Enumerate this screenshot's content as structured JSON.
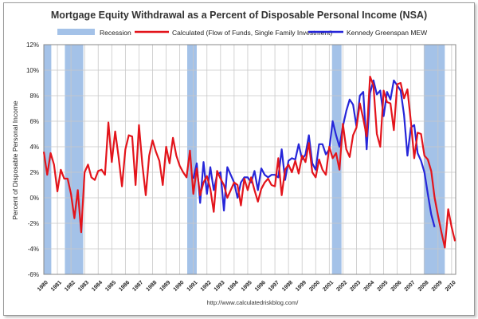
{
  "chart_data": {
    "type": "line",
    "title": "Mortgage Equity Withdrawal as a Percent of Disposable Personal Income (NSA)",
    "ylabel": "Percent of Disposable Personal Income",
    "xlabel": "",
    "source": "http://www.calculatedriskblog.com/",
    "ylim": [
      -6,
      12
    ],
    "yticks": [
      -6,
      -4,
      -2,
      0,
      2,
      4,
      6,
      8,
      10,
      12
    ],
    "ytick_labels": [
      "-6%",
      "-4%",
      "-2%",
      "0%",
      "2%",
      "4%",
      "6%",
      "8%",
      "10%",
      "12%"
    ],
    "xlim": [
      1980,
      2010.3
    ],
    "xticks": [
      1980,
      1981,
      1982,
      1983,
      1984,
      1985,
      1986,
      1987,
      1988,
      1989,
      1990,
      1991,
      1992,
      1993,
      1994,
      1995,
      1996,
      1997,
      1998,
      1999,
      2000,
      2001,
      2002,
      2003,
      2004,
      2005,
      2006,
      2007,
      2008,
      2009,
      2010
    ],
    "grid": true,
    "legend_position": "top",
    "recession_label": "Recession",
    "recessions": [
      [
        1980.0,
        1980.55
      ],
      [
        1981.55,
        1982.9
      ],
      [
        1990.55,
        1991.25
      ],
      [
        2001.2,
        2001.9
      ],
      [
        2007.95,
        2009.5
      ]
    ],
    "colors": {
      "recession": "#a4c2e8",
      "calculated": "#e3141b",
      "kennedy": "#2626d9",
      "grid": "#c8c8c8"
    },
    "series": [
      {
        "name": "Calculated (Flow of Funds, Single Family Investment)",
        "x_start": 1980.0,
        "step": 0.25,
        "values": [
          3.6,
          1.8,
          3.5,
          2.6,
          0.5,
          2.2,
          1.5,
          1.5,
          0.3,
          -1.6,
          0.6,
          -2.7,
          2.0,
          2.6,
          1.6,
          1.4,
          2.1,
          2.2,
          1.8,
          5.9,
          2.8,
          5.2,
          3.2,
          0.9,
          3.8,
          4.9,
          4.8,
          1.0,
          5.7,
          2.6,
          0.2,
          3.3,
          4.5,
          3.6,
          2.9,
          1.0,
          4.0,
          2.7,
          4.7,
          3.3,
          2.5,
          2.0,
          1.6,
          3.7,
          0.3,
          2.3,
          0.2,
          1.2,
          1.7,
          0.7,
          -1.1,
          2.1,
          1.5,
          1.0,
          0.0,
          0.6,
          1.2,
          1.0,
          -0.6,
          1.5,
          0.6,
          1.6,
          0.6,
          -0.3,
          0.7,
          1.2,
          1.5,
          1.0,
          0.9,
          3.1,
          0.2,
          2.2,
          2.6,
          2.0,
          2.9,
          1.9,
          3.3,
          2.8,
          4.3,
          2.0,
          1.6,
          3.0,
          2.2,
          1.8,
          4.0,
          3.1,
          3.5,
          2.2,
          5.8,
          3.8,
          3.2,
          4.9,
          5.5,
          7.4,
          6.2,
          4.8,
          9.5,
          8.8,
          5.0,
          4.0,
          8.4,
          7.5,
          7.4,
          5.3,
          8.9,
          9.0,
          7.8,
          8.5,
          6.0,
          3.1,
          5.1,
          5.0,
          3.3,
          3.0,
          2.1,
          0.0,
          -1.4,
          -2.7,
          -3.9,
          -0.9,
          -2.3,
          -3.4
        ]
      },
      {
        "name": "Kennedy Greenspan MEW",
        "x_start": 1991.0,
        "step": 0.25,
        "values": [
          1.5,
          2.7,
          -0.4,
          2.8,
          0.3,
          2.4,
          0.6,
          1.8,
          2.0,
          -1.0,
          2.4,
          1.8,
          1.2,
          0.0,
          1.2,
          1.6,
          1.6,
          1.2,
          2.1,
          0.6,
          2.3,
          1.8,
          1.6,
          1.8,
          1.8,
          1.6,
          3.8,
          1.4,
          2.9,
          3.1,
          3.0,
          4.2,
          3.0,
          3.4,
          4.9,
          2.7,
          2.2,
          4.2,
          4.2,
          3.4,
          3.8,
          6.0,
          4.9,
          4.0,
          5.6,
          6.8,
          7.7,
          7.3,
          5.6,
          8.0,
          8.3,
          3.8,
          8.2,
          9.2,
          8.1,
          8.4,
          6.4,
          8.3,
          7.7,
          9.2,
          8.8,
          8.4,
          6.5,
          3.3,
          5.5,
          5.7,
          3.5,
          2.9,
          2.0,
          0.3,
          -1.3,
          -2.3
        ]
      }
    ]
  }
}
